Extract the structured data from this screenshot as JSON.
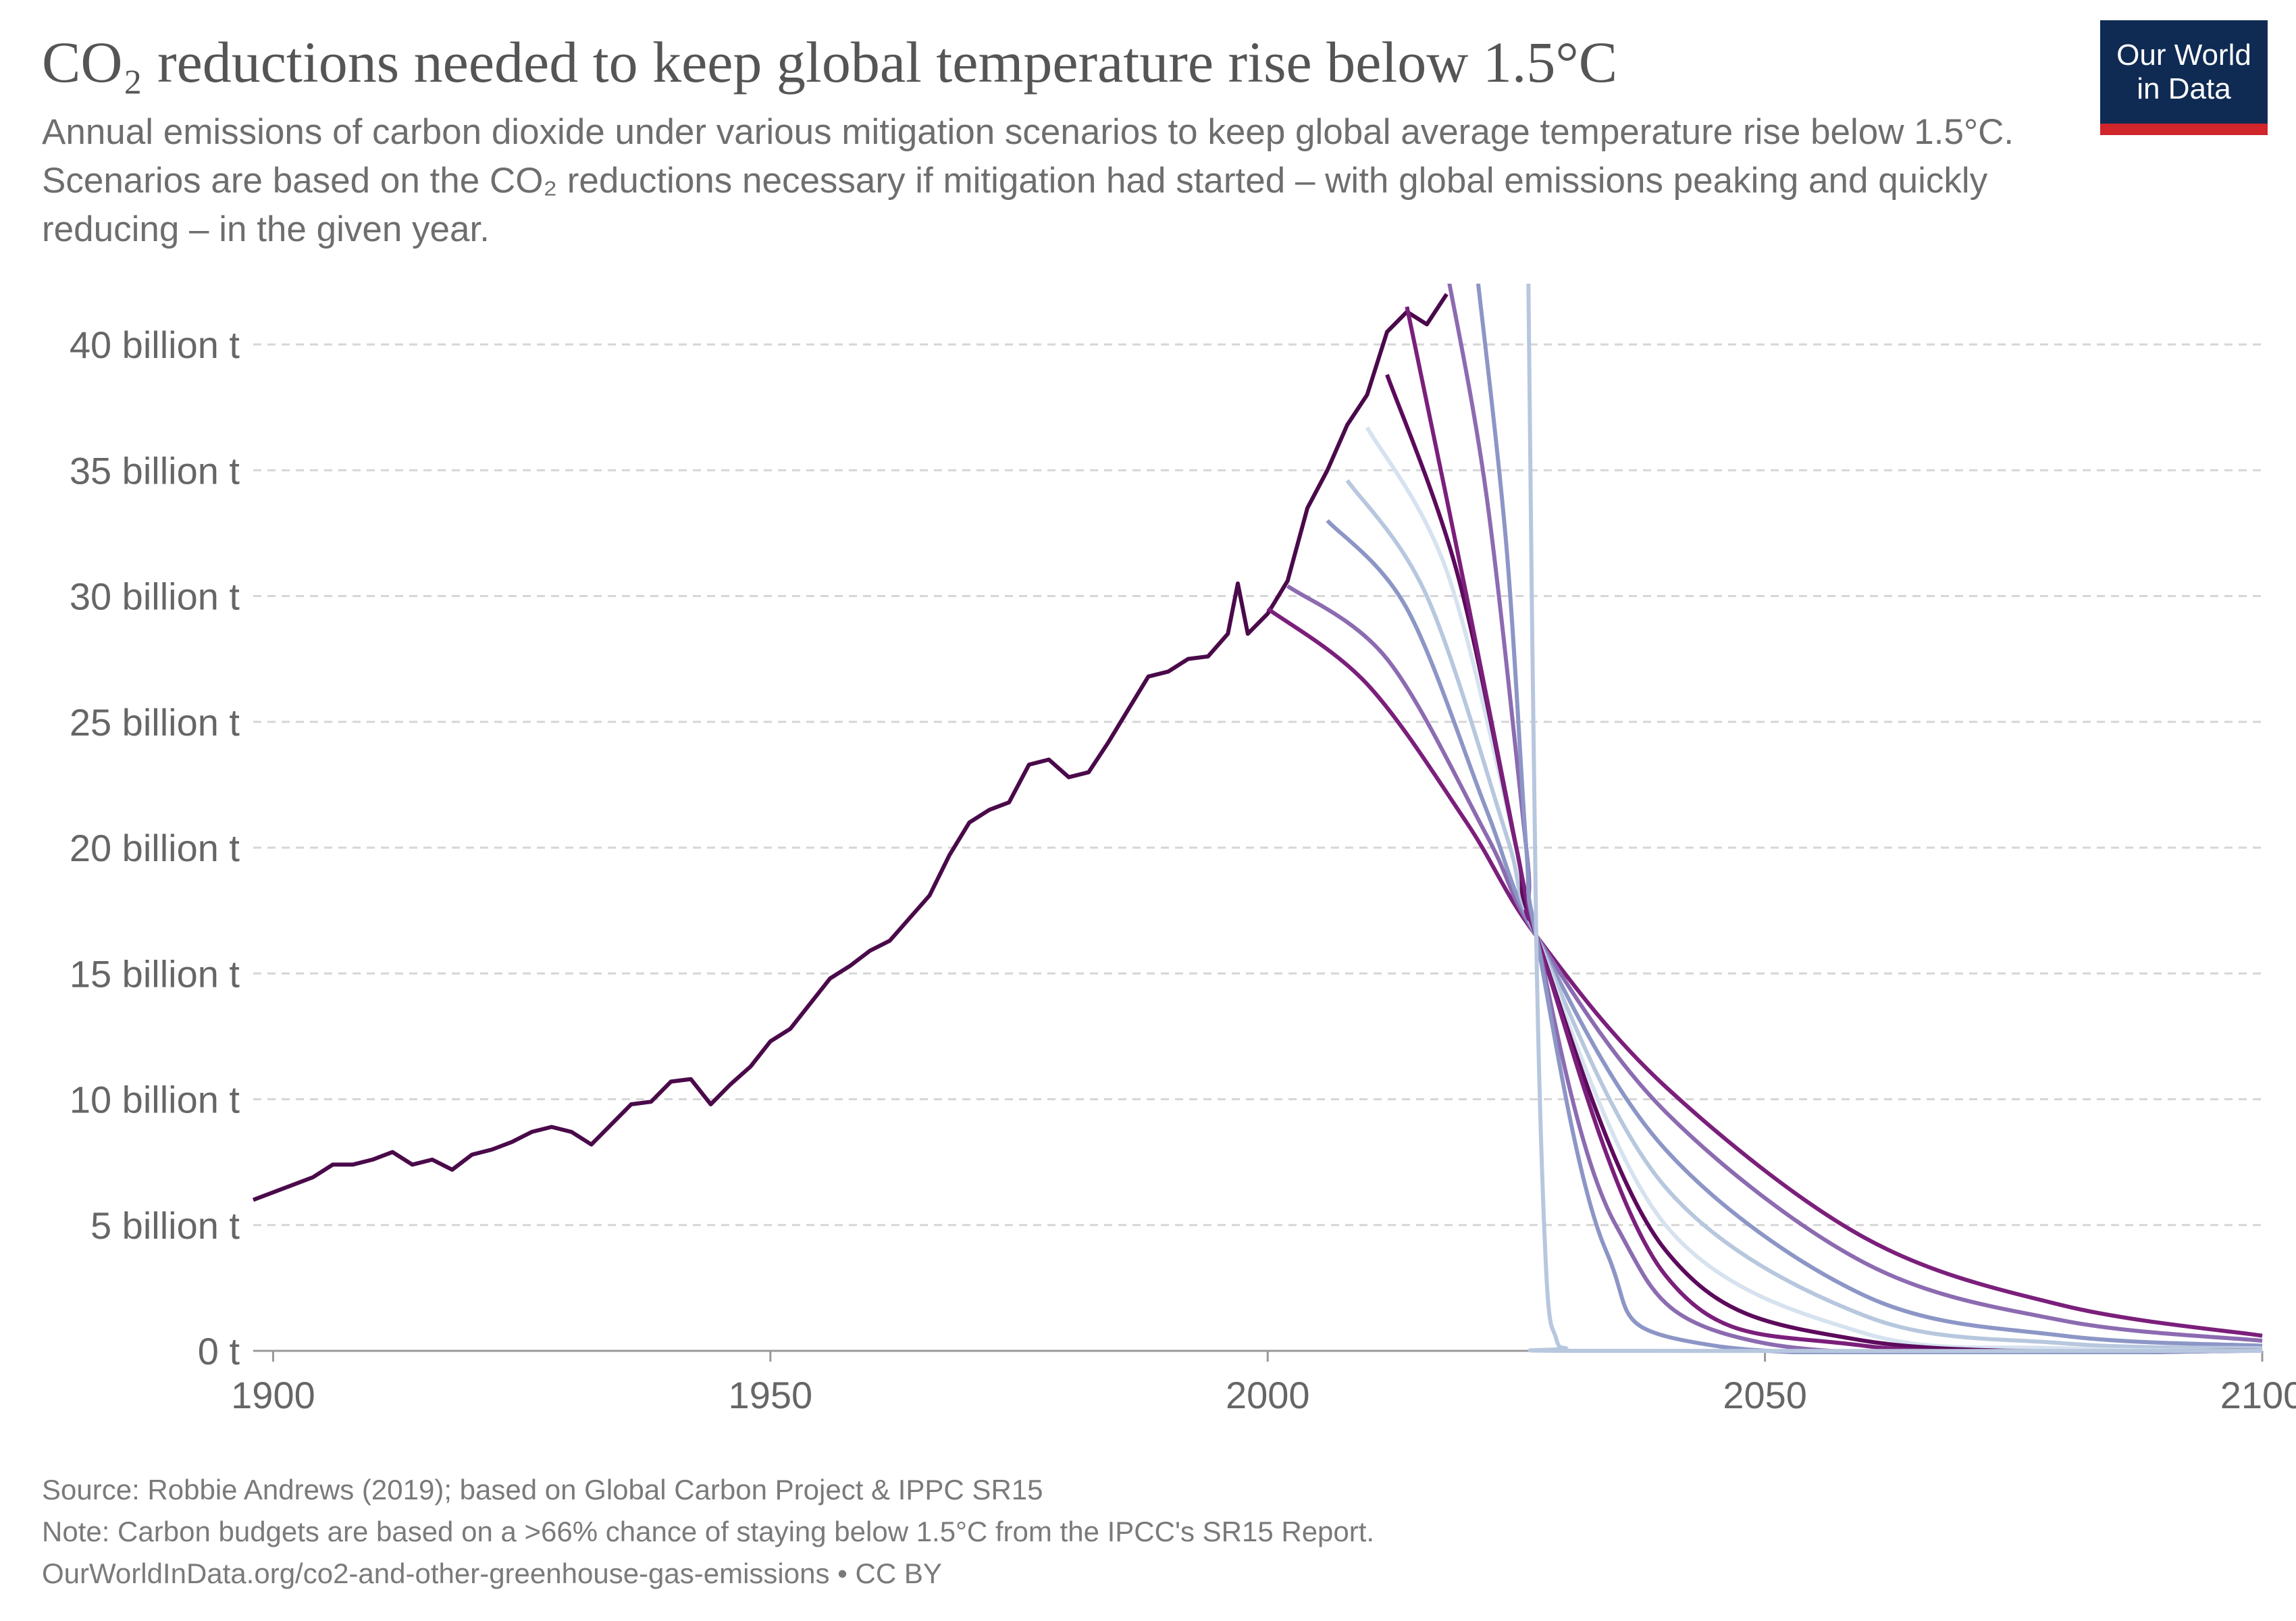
{
  "header": {
    "title": "CO₂ reductions needed to keep global temperature rise below 1.5°C",
    "subtitle": "Annual emissions of carbon dioxide under various mitigation scenarios to keep global average temperature rise below 1.5°C. Scenarios are based on the CO₂ reductions necessary if mitigation had started – with global emissions peaking and quickly reducing – in the given year.",
    "logo_text": "Our World in Data"
  },
  "footer": {
    "source": "Source: Robbie Andrews (2019); based on Global Carbon Project & IPPC SR15",
    "note": "Note: Carbon budgets are based on a >66% chance of staying below 1.5°C from the IPCC's SR15 Report.",
    "url_license": "OurWorldInData.org/co2-and-other-greenhouse-gas-emissions • CC BY"
  },
  "colors": {
    "historical": "#4a0a4a",
    "scenario_palette": [
      "#7b1f7b",
      "#8c6bb1",
      "#8c96c6",
      "#b7c7de",
      "#d6e2ef",
      "#5c0a5c"
    ],
    "logo_bg": "#0f2b53",
    "logo_bar": "#d0252b",
    "grid": "#d6d6d6"
  },
  "chart_data": {
    "type": "line",
    "xlim": [
      1898,
      2100
    ],
    "ylim": [
      0,
      40
    ],
    "x_ticks": [
      1900,
      1950,
      2000,
      2050,
      2100
    ],
    "x_tick_labels": [
      "1900",
      "1950",
      "2000",
      "2050",
      "2100"
    ],
    "y_ticks": [
      0,
      5,
      10,
      15,
      20,
      25,
      30,
      35,
      40
    ],
    "y_tick_labels": [
      "0 t",
      "5 billion t",
      "10 billion t",
      "15 billion t",
      "20 billion t",
      "25 billion t",
      "30 billion t",
      "35 billion t",
      "40 billion t"
    ],
    "grid": "horizontal dashed",
    "legend": "none",
    "series": [
      {
        "x": [
          1898,
          1900,
          1902,
          1904,
          1906,
          1908,
          1910,
          1912,
          1914,
          1916,
          1918,
          1920,
          1922,
          1924,
          1926,
          1928,
          1930,
          1932,
          1934,
          1936,
          1938,
          1940,
          1942,
          1944,
          1946,
          1948,
          1950,
          1952,
          1954,
          1956,
          1958,
          1960,
          1962,
          1964,
          1966,
          1968,
          1970,
          1972,
          1974,
          1976,
          1978,
          1980,
          1982,
          1984,
          1986,
          1988,
          1990,
          1992,
          1994,
          1996,
          1997,
          1998,
          2000,
          2002,
          2004,
          2006,
          2008,
          2010,
          2012,
          2014,
          2016,
          2018
        ],
        "y": [
          6.0,
          6.3,
          6.6,
          6.9,
          7.4,
          7.4,
          7.6,
          7.9,
          7.4,
          7.6,
          7.2,
          7.8,
          8.0,
          8.3,
          8.7,
          8.9,
          8.7,
          8.2,
          9.0,
          9.8,
          9.9,
          10.7,
          10.8,
          9.8,
          10.6,
          11.3,
          12.3,
          12.8,
          13.8,
          14.8,
          15.3,
          15.9,
          16.3,
          17.2,
          18.1,
          19.7,
          21.0,
          21.5,
          21.8,
          23.3,
          23.5,
          22.8,
          23.0,
          24.2,
          25.5,
          26.8,
          27.0,
          27.5,
          27.6,
          28.5,
          30.5,
          28.5,
          29.3,
          30.6,
          33.5,
          35.0,
          36.8,
          38.0,
          40.5,
          41.3,
          40.8,
          42.0
        ]
      },
      {
        "x": [
          2000,
          2010,
          2020,
          2027,
          2040,
          2060,
          2080,
          2100
        ],
        "y": [
          29.5,
          26.5,
          21.0,
          16.5,
          10.5,
          4.5,
          1.8,
          0.6
        ]
      },
      {
        "x": [
          2002,
          2012,
          2022,
          2027,
          2040,
          2060,
          2080,
          2100
        ],
        "y": [
          30.4,
          27.5,
          20.5,
          16.5,
          9.5,
          3.5,
          1.2,
          0.4
        ]
      },
      {
        "x": [
          2006,
          2014,
          2022,
          2027,
          2040,
          2060,
          2080,
          2100
        ],
        "y": [
          33.0,
          29.5,
          21.5,
          16.5,
          8.0,
          2.2,
          0.6,
          0.2
        ]
      },
      {
        "x": [
          2008,
          2016,
          2024,
          2027,
          2040,
          2060,
          2080,
          2100
        ],
        "y": [
          34.6,
          30.0,
          20.5,
          16.5,
          6.5,
          1.4,
          0.3,
          0.1
        ]
      },
      {
        "x": [
          2010,
          2018,
          2025,
          2027,
          2040,
          2060,
          2080,
          2100
        ],
        "y": [
          36.7,
          31.0,
          20.0,
          16.5,
          5.0,
          0.7,
          0.1,
          0.0
        ]
      },
      {
        "x": [
          2012,
          2019,
          2025,
          2027,
          2040,
          2060,
          2100
        ],
        "y": [
          38.8,
          31.0,
          20.0,
          16.5,
          4.0,
          0.4,
          0.0
        ]
      },
      {
        "x": [
          2014,
          2020,
          2026,
          2027,
          2040,
          2060,
          2100
        ],
        "y": [
          41.5,
          30.0,
          18.0,
          16.5,
          3.0,
          0.2,
          0.0
        ]
      },
      {
        "x": [
          2018,
          2022,
          2026,
          2027,
          2035,
          2050,
          2100
        ],
        "y": [
          43.0,
          34.0,
          20.0,
          16.5,
          5.0,
          0.3,
          0.0
        ]
      },
      {
        "x": [
          2021,
          2024,
          2026,
          2027,
          2034,
          2045,
          2100
        ],
        "y": [
          43.0,
          32.0,
          20.0,
          16.5,
          4.0,
          0.2,
          0.0
        ]
      },
      {
        "x": [
          2026.2,
          2027,
          2028,
          2029,
          2030,
          2032,
          2100
        ],
        "y": [
          43.0,
          16.5,
          3.2,
          0.5,
          0.1,
          0.0,
          0.0
        ]
      }
    ]
  }
}
